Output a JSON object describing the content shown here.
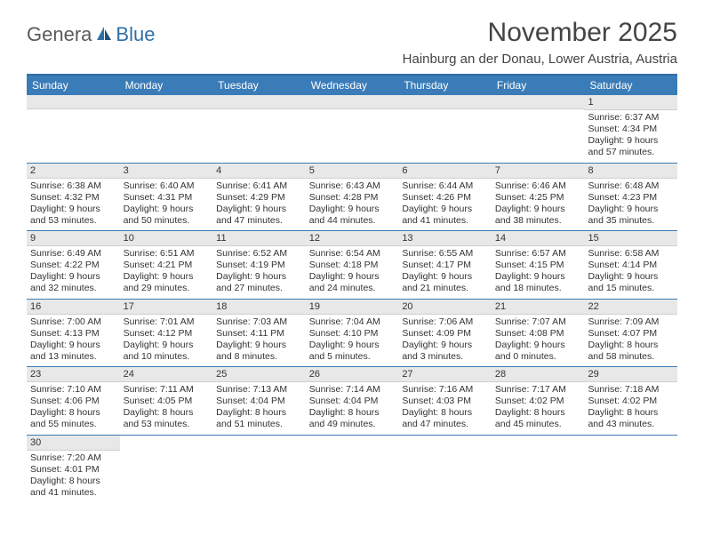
{
  "logo": {
    "part1": "Genera",
    "part2": "Blue"
  },
  "title": "November 2025",
  "subtitle": "Hainburg an der Donau, Lower Austria, Austria",
  "colors": {
    "header_bg": "#3a7cb8",
    "border": "#2f6fa8",
    "daynum_bg": "#e8e8e8",
    "logo_gray": "#5a5a5a",
    "logo_blue": "#2f6fa8"
  },
  "weekdays": [
    "Sunday",
    "Monday",
    "Tuesday",
    "Wednesday",
    "Thursday",
    "Friday",
    "Saturday"
  ],
  "weeks": [
    [
      null,
      null,
      null,
      null,
      null,
      null,
      {
        "n": "1",
        "sr": "Sunrise: 6:37 AM",
        "ss": "Sunset: 4:34 PM",
        "dl": "Daylight: 9 hours and 57 minutes."
      }
    ],
    [
      {
        "n": "2",
        "sr": "Sunrise: 6:38 AM",
        "ss": "Sunset: 4:32 PM",
        "dl": "Daylight: 9 hours and 53 minutes."
      },
      {
        "n": "3",
        "sr": "Sunrise: 6:40 AM",
        "ss": "Sunset: 4:31 PM",
        "dl": "Daylight: 9 hours and 50 minutes."
      },
      {
        "n": "4",
        "sr": "Sunrise: 6:41 AM",
        "ss": "Sunset: 4:29 PM",
        "dl": "Daylight: 9 hours and 47 minutes."
      },
      {
        "n": "5",
        "sr": "Sunrise: 6:43 AM",
        "ss": "Sunset: 4:28 PM",
        "dl": "Daylight: 9 hours and 44 minutes."
      },
      {
        "n": "6",
        "sr": "Sunrise: 6:44 AM",
        "ss": "Sunset: 4:26 PM",
        "dl": "Daylight: 9 hours and 41 minutes."
      },
      {
        "n": "7",
        "sr": "Sunrise: 6:46 AM",
        "ss": "Sunset: 4:25 PM",
        "dl": "Daylight: 9 hours and 38 minutes."
      },
      {
        "n": "8",
        "sr": "Sunrise: 6:48 AM",
        "ss": "Sunset: 4:23 PM",
        "dl": "Daylight: 9 hours and 35 minutes."
      }
    ],
    [
      {
        "n": "9",
        "sr": "Sunrise: 6:49 AM",
        "ss": "Sunset: 4:22 PM",
        "dl": "Daylight: 9 hours and 32 minutes."
      },
      {
        "n": "10",
        "sr": "Sunrise: 6:51 AM",
        "ss": "Sunset: 4:21 PM",
        "dl": "Daylight: 9 hours and 29 minutes."
      },
      {
        "n": "11",
        "sr": "Sunrise: 6:52 AM",
        "ss": "Sunset: 4:19 PM",
        "dl": "Daylight: 9 hours and 27 minutes."
      },
      {
        "n": "12",
        "sr": "Sunrise: 6:54 AM",
        "ss": "Sunset: 4:18 PM",
        "dl": "Daylight: 9 hours and 24 minutes."
      },
      {
        "n": "13",
        "sr": "Sunrise: 6:55 AM",
        "ss": "Sunset: 4:17 PM",
        "dl": "Daylight: 9 hours and 21 minutes."
      },
      {
        "n": "14",
        "sr": "Sunrise: 6:57 AM",
        "ss": "Sunset: 4:15 PM",
        "dl": "Daylight: 9 hours and 18 minutes."
      },
      {
        "n": "15",
        "sr": "Sunrise: 6:58 AM",
        "ss": "Sunset: 4:14 PM",
        "dl": "Daylight: 9 hours and 15 minutes."
      }
    ],
    [
      {
        "n": "16",
        "sr": "Sunrise: 7:00 AM",
        "ss": "Sunset: 4:13 PM",
        "dl": "Daylight: 9 hours and 13 minutes."
      },
      {
        "n": "17",
        "sr": "Sunrise: 7:01 AM",
        "ss": "Sunset: 4:12 PM",
        "dl": "Daylight: 9 hours and 10 minutes."
      },
      {
        "n": "18",
        "sr": "Sunrise: 7:03 AM",
        "ss": "Sunset: 4:11 PM",
        "dl": "Daylight: 9 hours and 8 minutes."
      },
      {
        "n": "19",
        "sr": "Sunrise: 7:04 AM",
        "ss": "Sunset: 4:10 PM",
        "dl": "Daylight: 9 hours and 5 minutes."
      },
      {
        "n": "20",
        "sr": "Sunrise: 7:06 AM",
        "ss": "Sunset: 4:09 PM",
        "dl": "Daylight: 9 hours and 3 minutes."
      },
      {
        "n": "21",
        "sr": "Sunrise: 7:07 AM",
        "ss": "Sunset: 4:08 PM",
        "dl": "Daylight: 9 hours and 0 minutes."
      },
      {
        "n": "22",
        "sr": "Sunrise: 7:09 AM",
        "ss": "Sunset: 4:07 PM",
        "dl": "Daylight: 8 hours and 58 minutes."
      }
    ],
    [
      {
        "n": "23",
        "sr": "Sunrise: 7:10 AM",
        "ss": "Sunset: 4:06 PM",
        "dl": "Daylight: 8 hours and 55 minutes."
      },
      {
        "n": "24",
        "sr": "Sunrise: 7:11 AM",
        "ss": "Sunset: 4:05 PM",
        "dl": "Daylight: 8 hours and 53 minutes."
      },
      {
        "n": "25",
        "sr": "Sunrise: 7:13 AM",
        "ss": "Sunset: 4:04 PM",
        "dl": "Daylight: 8 hours and 51 minutes."
      },
      {
        "n": "26",
        "sr": "Sunrise: 7:14 AM",
        "ss": "Sunset: 4:04 PM",
        "dl": "Daylight: 8 hours and 49 minutes."
      },
      {
        "n": "27",
        "sr": "Sunrise: 7:16 AM",
        "ss": "Sunset: 4:03 PM",
        "dl": "Daylight: 8 hours and 47 minutes."
      },
      {
        "n": "28",
        "sr": "Sunrise: 7:17 AM",
        "ss": "Sunset: 4:02 PM",
        "dl": "Daylight: 8 hours and 45 minutes."
      },
      {
        "n": "29",
        "sr": "Sunrise: 7:18 AM",
        "ss": "Sunset: 4:02 PM",
        "dl": "Daylight: 8 hours and 43 minutes."
      }
    ],
    [
      {
        "n": "30",
        "sr": "Sunrise: 7:20 AM",
        "ss": "Sunset: 4:01 PM",
        "dl": "Daylight: 8 hours and 41 minutes."
      },
      null,
      null,
      null,
      null,
      null,
      null
    ]
  ]
}
